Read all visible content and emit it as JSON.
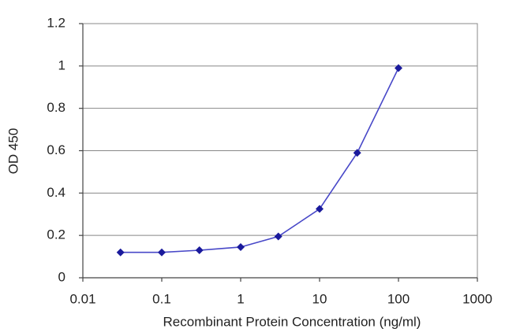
{
  "chart_data": {
    "type": "line",
    "xlabel": "Recombinant Protein Concentration (ng/ml)",
    "ylabel": "OD 450",
    "x": [
      0.03,
      0.1,
      0.3,
      1,
      3,
      10,
      30,
      100
    ],
    "values": [
      0.12,
      0.12,
      0.13,
      0.145,
      0.195,
      0.325,
      0.59,
      0.99
    ],
    "color": "#1a1a9c",
    "line_color": "#4848c8",
    "xlog": true,
    "xlim": [
      0.01,
      1000
    ],
    "xticks": [
      0.01,
      0.1,
      1,
      10,
      100,
      1000
    ],
    "ylim": [
      0,
      1.2
    ],
    "yticks": [
      0,
      0.2,
      0.4,
      0.6,
      0.8,
      1,
      1.2
    ],
    "grid": true
  }
}
